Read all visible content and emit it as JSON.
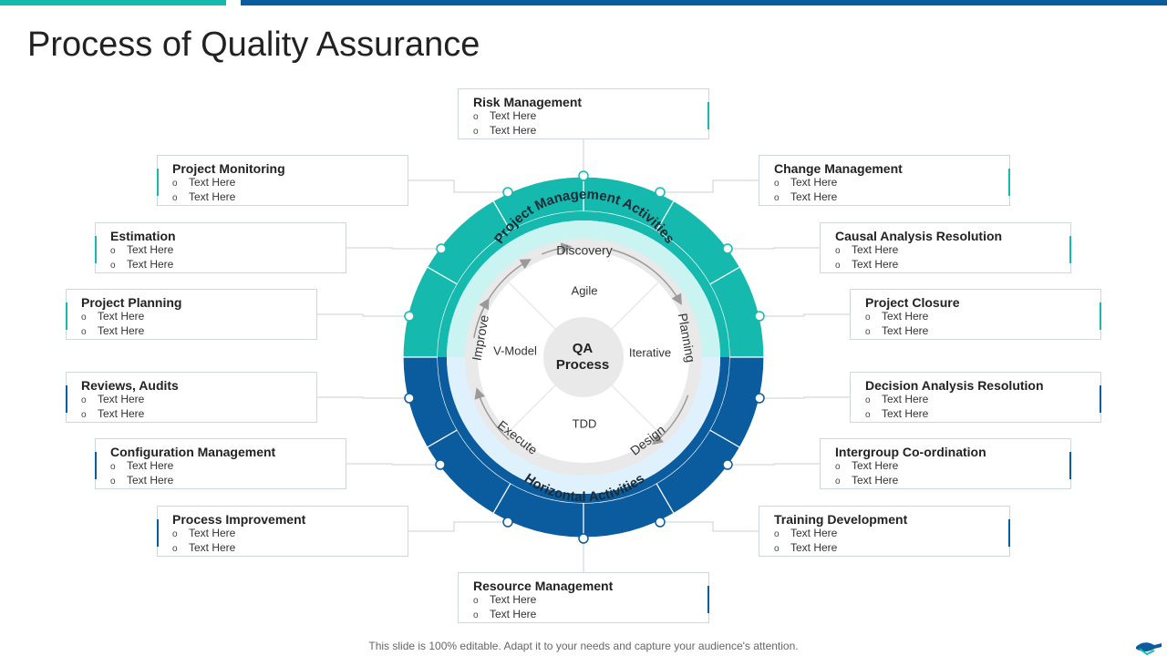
{
  "title": "Process of Quality Assurance",
  "footer": "This slide is 100% editable. Adapt it to your needs and capture your audience's attention.",
  "colors": {
    "teal": "#16b9ad",
    "blue": "#0a5c9e",
    "light_teal": "#c9f4f1",
    "light_blue": "#dff1fc",
    "grey": "#e9e9e9"
  },
  "diagram": {
    "center": [
      "QA",
      "Process"
    ],
    "models": {
      "top": "Agile",
      "right": "Iterative",
      "bottom": "TDD",
      "left": "V-Model"
    },
    "cycle": {
      "discovery": "Discovery",
      "planning": "Planning",
      "design": "Design",
      "execute": "Execute",
      "improve": "Improve"
    },
    "ring_labels": {
      "top": "Project Management Activities",
      "bottom": "Horizontal Activities"
    }
  },
  "boxes": [
    {
      "title": "Risk Management",
      "items": [
        "Text Here",
        "Text Here"
      ]
    },
    {
      "title": "Project Monitoring",
      "items": [
        "Text Here",
        "Text Here"
      ]
    },
    {
      "title": "Change Management",
      "items": [
        "Text Here",
        "Text Here"
      ]
    },
    {
      "title": "Estimation",
      "items": [
        "Text Here",
        "Text Here"
      ]
    },
    {
      "title": "Causal Analysis Resolution",
      "items": [
        "Text Here",
        "Text Here"
      ]
    },
    {
      "title": "Project Planning",
      "items": [
        "Text Here",
        "Text Here"
      ]
    },
    {
      "title": "Project Closure",
      "items": [
        "Text Here",
        "Text Here"
      ]
    },
    {
      "title": "Reviews, Audits",
      "items": [
        "Text Here",
        "Text Here"
      ]
    },
    {
      "title": "Decision Analysis Resolution",
      "items": [
        "Text Here",
        "Text Here"
      ]
    },
    {
      "title": "Configuration Management",
      "items": [
        "Text Here",
        "Text Here"
      ]
    },
    {
      "title": "Intergroup Co-ordination",
      "items": [
        "Text Here",
        "Text Here"
      ]
    },
    {
      "title": "Process Improvement",
      "items": [
        "Text Here",
        "Text Here"
      ]
    },
    {
      "title": "Training Development",
      "items": [
        "Text Here",
        "Text Here"
      ]
    },
    {
      "title": "Resource Management",
      "items": [
        "Text Here",
        "Text Here"
      ]
    }
  ]
}
